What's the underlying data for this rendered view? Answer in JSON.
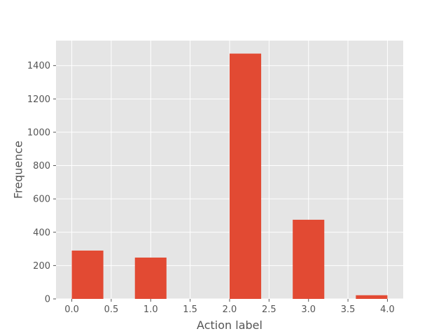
{
  "chart_data": {
    "type": "bar",
    "title": "",
    "xlabel": "Action label",
    "ylabel": "Frequence",
    "xlim": [
      -0.2,
      4.2
    ],
    "ylim": [
      0,
      1550
    ],
    "grid": true,
    "bar_width": 0.4,
    "bars": [
      {
        "x": 0.0,
        "value": 290
      },
      {
        "x": 0.8,
        "value": 248
      },
      {
        "x": 2.0,
        "value": 1472
      },
      {
        "x": 2.8,
        "value": 475
      },
      {
        "x": 3.6,
        "value": 22
      }
    ],
    "xticks": [
      {
        "value": 0.0,
        "label": "0.0"
      },
      {
        "value": 0.5,
        "label": "0.5"
      },
      {
        "value": 1.0,
        "label": "1.0"
      },
      {
        "value": 1.5,
        "label": "1.5"
      },
      {
        "value": 2.0,
        "label": "2.0"
      },
      {
        "value": 2.5,
        "label": "2.5"
      },
      {
        "value": 3.0,
        "label": "3.0"
      },
      {
        "value": 3.5,
        "label": "3.5"
      },
      {
        "value": 4.0,
        "label": "4.0"
      }
    ],
    "yticks": [
      {
        "value": 0,
        "label": "0"
      },
      {
        "value": 200,
        "label": "200"
      },
      {
        "value": 400,
        "label": "400"
      },
      {
        "value": 600,
        "label": "600"
      },
      {
        "value": 800,
        "label": "800"
      },
      {
        "value": 1000,
        "label": "1000"
      },
      {
        "value": 1200,
        "label": "1200"
      },
      {
        "value": 1400,
        "label": "1400"
      }
    ],
    "colors": {
      "bar": "#E24A33",
      "plot_background": "#E5E5E5",
      "grid": "#FFFFFF",
      "text": "#555555"
    }
  }
}
